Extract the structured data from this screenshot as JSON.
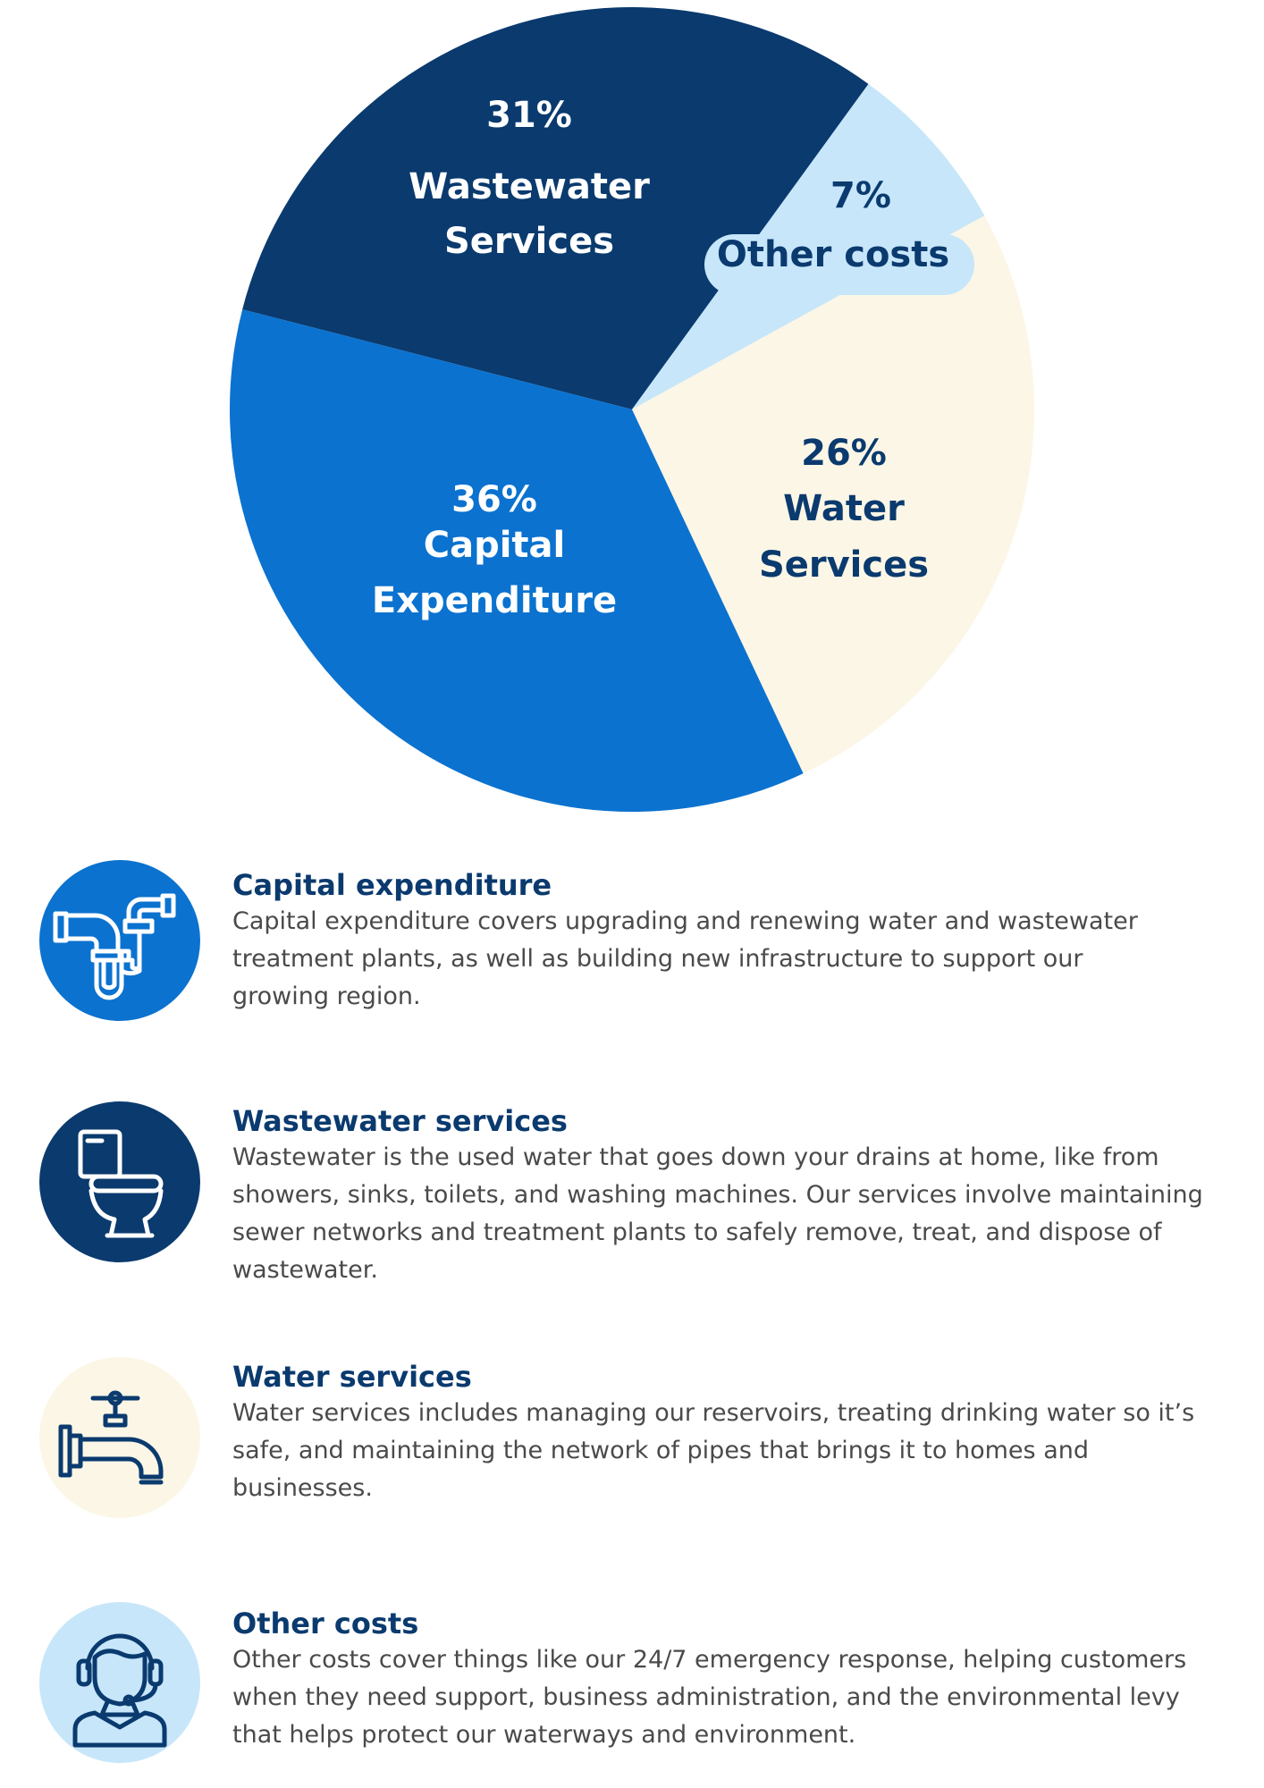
{
  "chart_data": {
    "type": "pie",
    "slices": [
      {
        "name": "Wastewater Services",
        "label_pct": "31%",
        "label_lines": [
          "Wastewater",
          "Services"
        ],
        "value": 31,
        "color": "#0a3a6e",
        "text_color": "#ffffff"
      },
      {
        "name": "Other costs",
        "label_pct": "7%",
        "label_lines": [
          "Other costs"
        ],
        "value": 7,
        "color": "#c7e6fa",
        "text_color": "#0a3a6e"
      },
      {
        "name": "Water Services",
        "label_pct": "26%",
        "label_lines": [
          "Water",
          "Services"
        ],
        "value": 26,
        "color": "#fcf6e6",
        "text_color": "#0a3a6e"
      },
      {
        "name": "Capital Expenditure",
        "label_pct": "36%",
        "label_lines": [
          "Capital",
          "Expenditure"
        ],
        "value": 36,
        "color": "#0b72cf",
        "text_color": "#ffffff"
      }
    ]
  },
  "items": [
    {
      "title": "Capital expenditure",
      "lines": [
        "Capital expenditure covers upgrading and renewing water and wastewater",
        "treatment plants, as well as building new infrastructure to support our",
        "growing region."
      ],
      "icon": "pipe-icon",
      "circle_color": "#0b72cf",
      "icon_color": "#ffffff"
    },
    {
      "title": "Wastewater services",
      "lines": [
        "Wastewater is the used water that goes down your drains at home, like from",
        "showers, sinks, toilets, and washing machines. Our services involve maintaining",
        "sewer networks and treatment plants to safely remove, treat, and dispose of",
        "wastewater."
      ],
      "icon": "toilet-icon",
      "circle_color": "#0a3a6e",
      "icon_color": "#ffffff"
    },
    {
      "title": "Water services",
      "lines": [
        "Water services includes managing our reservoirs, treating drinking water so it’s",
        "safe, and maintaining the network of pipes that brings it to homes and",
        "businesses."
      ],
      "icon": "tap-icon",
      "circle_color": "#fcf6e6",
      "icon_color": "#0a3a6e"
    },
    {
      "title": "Other costs",
      "lines": [
        "Other costs cover things like our 24/7 emergency response, helping customers",
        "when they need support, business administration, and the environmental levy",
        "that helps protect our waterways and environment."
      ],
      "icon": "headset-icon",
      "circle_color": "#c7e6fa",
      "icon_color": "#0a3a6e"
    }
  ]
}
